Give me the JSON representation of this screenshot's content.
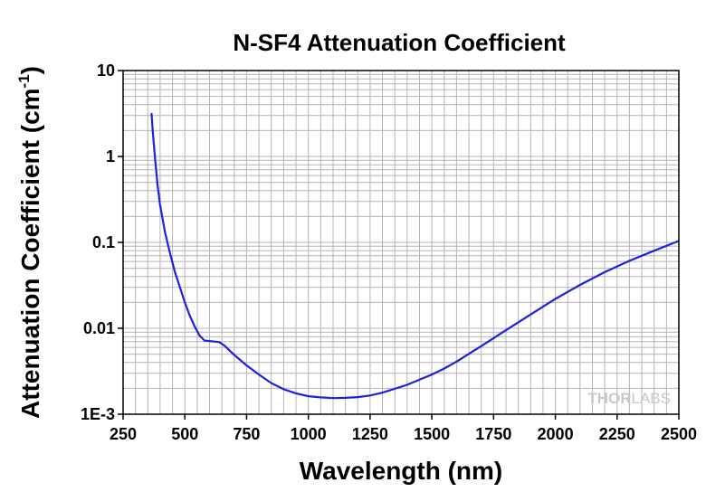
{
  "chart_data": {
    "type": "line",
    "title": "N-SF4 Attenuation Coefficient",
    "xlabel": "Wavelength (nm)",
    "ylabel": "Attenuation Coefficient (cm",
    "ylabel_sup": "-1",
    "ylabel_close": ")",
    "xlim": [
      250,
      2500
    ],
    "ylim": [
      0.001,
      10
    ],
    "yscale": "log",
    "grid": true,
    "x_ticks": [
      250,
      500,
      750,
      1000,
      1250,
      1500,
      1750,
      2000,
      2250,
      2500
    ],
    "x_tick_labels": [
      "250",
      "500",
      "750",
      "1000",
      "1250",
      "1500",
      "1750",
      "2000",
      "2250",
      "2500"
    ],
    "y_ticks": [
      0.001,
      0.01,
      0.1,
      1,
      10
    ],
    "y_tick_labels": [
      "1E-3",
      "0.01",
      "0.1",
      "1",
      "10"
    ],
    "series": [
      {
        "color": "#1f1fe0",
        "x": [
          365,
          370,
          380,
          390,
          400,
          420,
          440,
          460,
          480,
          500,
          520,
          540,
          560,
          580,
          600,
          620,
          640,
          660,
          700,
          750,
          800,
          850,
          900,
          950,
          1000,
          1050,
          1100,
          1150,
          1200,
          1250,
          1300,
          1400,
          1500,
          1550,
          1600,
          1700,
          1800,
          1900,
          2000,
          2100,
          2200,
          2300,
          2400,
          2500
        ],
        "y": [
          3.2,
          2.0,
          0.9,
          0.45,
          0.27,
          0.13,
          0.075,
          0.045,
          0.03,
          0.02,
          0.014,
          0.0105,
          0.0082,
          0.0072,
          0.0071,
          0.007,
          0.0069,
          0.0063,
          0.0049,
          0.0037,
          0.0029,
          0.0023,
          0.00195,
          0.00175,
          0.00162,
          0.00157,
          0.00154,
          0.00155,
          0.00158,
          0.00165,
          0.00178,
          0.0022,
          0.0029,
          0.0034,
          0.0041,
          0.0062,
          0.0095,
          0.0145,
          0.022,
          0.032,
          0.045,
          0.061,
          0.08,
          0.104
        ]
      }
    ],
    "watermark": {
      "part1": "THOR",
      "part2": "LABS"
    }
  }
}
